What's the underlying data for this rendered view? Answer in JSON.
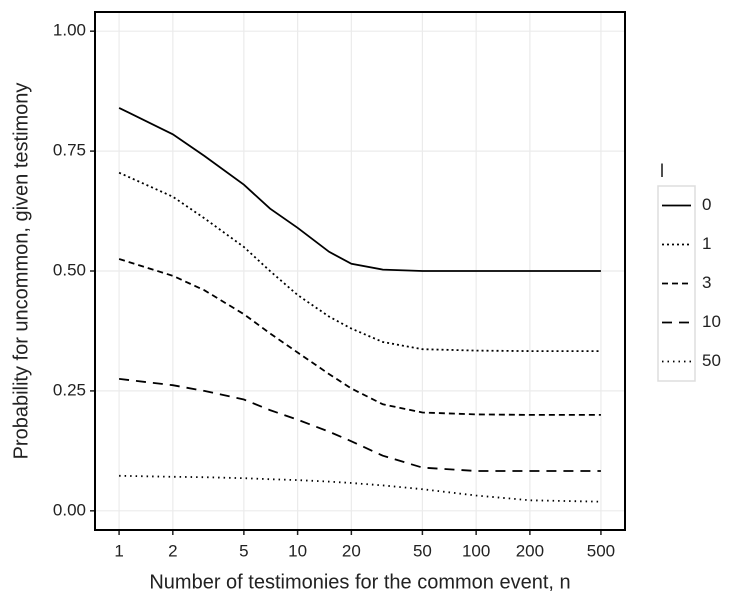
{
  "chart_data": {
    "type": "line",
    "x_label": "Number of testimonies for the common event, n",
    "y_label": "Probability for uncommon, given testimony",
    "legend_title": "l",
    "x": [
      1,
      2,
      3,
      5,
      7,
      10,
      15,
      20,
      30,
      50,
      100,
      200,
      500
    ],
    "series": [
      {
        "name": "0",
        "color": "#000000",
        "linetype": "solid",
        "values": [
          0.84,
          0.785,
          0.74,
          0.68,
          0.63,
          0.59,
          0.54,
          0.515,
          0.503,
          0.5,
          0.5,
          0.5,
          0.5
        ]
      },
      {
        "name": "1",
        "color": "#000000",
        "linetype": "2 3",
        "values": [
          0.705,
          0.655,
          0.61,
          0.55,
          0.5,
          0.45,
          0.405,
          0.38,
          0.352,
          0.337,
          0.334,
          0.333,
          0.333
        ]
      },
      {
        "name": "3",
        "color": "#000000",
        "linetype": "6 4",
        "values": [
          0.525,
          0.49,
          0.46,
          0.41,
          0.37,
          0.33,
          0.285,
          0.255,
          0.222,
          0.205,
          0.201,
          0.2,
          0.2
        ]
      },
      {
        "name": "10",
        "color": "#000000",
        "linetype": "10 7",
        "values": [
          0.275,
          0.262,
          0.25,
          0.232,
          0.21,
          0.19,
          0.165,
          0.145,
          0.115,
          0.09,
          0.083,
          0.083,
          0.083
        ]
      },
      {
        "name": "50",
        "color": "#000000",
        "linetype": "1.5 4",
        "values": [
          0.073,
          0.071,
          0.07,
          0.068,
          0.066,
          0.064,
          0.061,
          0.058,
          0.053,
          0.045,
          0.032,
          0.022,
          0.019
        ]
      }
    ],
    "x_log": true,
    "xlim": [
      0.733,
      682
    ],
    "xticks": [
      1,
      2,
      5,
      10,
      20,
      50,
      100,
      200,
      500
    ],
    "ylim": [
      -0.04,
      1.04
    ],
    "yticks": [
      {
        "value": 0,
        "label": "0.00"
      },
      {
        "value": 0.25,
        "label": "0.25"
      },
      {
        "value": 0.5,
        "label": "0.50"
      },
      {
        "value": 0.75,
        "label": "0.75"
      },
      {
        "value": 1,
        "label": "1.00"
      }
    ],
    "grid": true,
    "legend_position": "right"
  }
}
